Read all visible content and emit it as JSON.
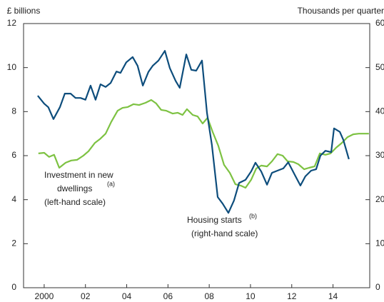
{
  "chart_data": {
    "type": "line",
    "y_label": "£ billions",
    "y2_label": "Thousands per quarter",
    "xlim": [
      1999,
      2015.78
    ],
    "xticks": [
      {
        "value": 2000,
        "label": "2000"
      },
      {
        "value": 2002,
        "label": "02"
      },
      {
        "value": 2004,
        "label": "04"
      },
      {
        "value": 2006,
        "label": "06"
      },
      {
        "value": 2008,
        "label": "08"
      },
      {
        "value": 2010,
        "label": "10"
      },
      {
        "value": 2012,
        "label": "12"
      },
      {
        "value": 2014,
        "label": "14"
      }
    ],
    "ylim": [
      0,
      12
    ],
    "yticks": [
      0,
      2,
      4,
      6,
      8,
      10,
      12
    ],
    "y2lim": [
      0,
      60
    ],
    "y2ticks": [
      0,
      10,
      20,
      30,
      40,
      50,
      60
    ],
    "grid": false,
    "series": [
      {
        "name": "Investment in new dwellings",
        "name_sup": "(a)",
        "name_note": "(left-hand scale)",
        "color": "#7dc242",
        "axis": "y",
        "x": [
          1999.72,
          2000.0,
          2000.24,
          2000.48,
          2000.73,
          2001.04,
          2001.31,
          2001.59,
          2001.9,
          2002.15,
          2002.46,
          2002.7,
          2002.98,
          2003.25,
          2003.56,
          2003.8,
          2004.05,
          2004.33,
          2004.6,
          2004.91,
          2005.19,
          2005.43,
          2005.67,
          2005.92,
          2006.23,
          2006.47,
          2006.71,
          2006.92,
          2007.2,
          2007.44,
          2007.68,
          2007.92,
          2008.17,
          2008.44,
          2008.72,
          2009.0,
          2009.27,
          2009.52,
          2009.76,
          2010.03,
          2010.28,
          2010.52,
          2010.8,
          2011.04,
          2011.31,
          2011.56,
          2011.8,
          2012.08,
          2012.32,
          2012.6,
          2012.84,
          2013.11,
          2013.36,
          2013.63,
          2013.88,
          2014.15,
          2014.43,
          2014.7,
          2014.98,
          2015.25,
          2015.74
        ],
        "values": [
          6.1,
          6.13,
          5.94,
          6.04,
          5.45,
          5.68,
          5.78,
          5.81,
          6.0,
          6.2,
          6.58,
          6.75,
          7.0,
          7.53,
          8.04,
          8.17,
          8.21,
          8.34,
          8.3,
          8.4,
          8.53,
          8.37,
          8.08,
          8.04,
          7.91,
          7.95,
          7.85,
          8.11,
          7.85,
          7.78,
          7.46,
          7.72,
          7.07,
          6.45,
          5.58,
          5.22,
          4.7,
          4.64,
          4.54,
          4.9,
          5.42,
          5.55,
          5.51,
          5.74,
          6.07,
          6.0,
          5.74,
          5.71,
          5.61,
          5.38,
          5.45,
          5.51,
          6.1,
          6.04,
          6.1,
          6.36,
          6.58,
          6.84,
          6.97,
          7.0,
          7.0
        ]
      },
      {
        "name": "Housing starts",
        "name_sup": "(b)",
        "name_note": "(right-hand scale)",
        "color": "#0d4d7c",
        "axis": "y2",
        "x": [
          1999.69,
          2000.0,
          2000.2,
          2000.45,
          2000.76,
          2001.0,
          2001.28,
          2001.52,
          2001.76,
          2002.0,
          2002.25,
          2002.49,
          2002.73,
          2002.98,
          2003.22,
          2003.5,
          2003.7,
          2003.98,
          2004.29,
          2004.53,
          2004.78,
          2005.05,
          2005.26,
          2005.54,
          2005.85,
          2006.09,
          2006.37,
          2006.57,
          2006.89,
          2007.13,
          2007.37,
          2007.65,
          2007.89,
          2008.13,
          2008.41,
          2008.65,
          2008.93,
          2009.2,
          2009.45,
          2009.76,
          2010.03,
          2010.24,
          2010.52,
          2010.8,
          2011.04,
          2011.31,
          2011.59,
          2011.83,
          2012.15,
          2012.42,
          2012.66,
          2012.94,
          2013.18,
          2013.39,
          2013.63,
          2013.91,
          2014.05,
          2014.33,
          2014.5,
          2014.77
        ],
        "values": [
          43.6,
          41.8,
          41,
          38.3,
          41,
          44.1,
          44.1,
          43.1,
          43.1,
          42.7,
          45.9,
          42.7,
          46.2,
          45.6,
          46.5,
          49.1,
          48.8,
          51.2,
          52.4,
          50.4,
          45.9,
          49,
          50.4,
          51.6,
          53.8,
          49.9,
          47,
          45.4,
          53,
          49.5,
          49.3,
          51.6,
          39.7,
          32.4,
          20.6,
          19.1,
          17,
          19.8,
          23.8,
          24.5,
          26.4,
          28.4,
          26.4,
          23.4,
          26.1,
          26.6,
          27.1,
          28.5,
          25.6,
          23.2,
          25.3,
          26.6,
          26.9,
          30,
          31.1,
          30.8,
          36.2,
          35.4,
          33.6,
          29.2
        ]
      }
    ]
  }
}
